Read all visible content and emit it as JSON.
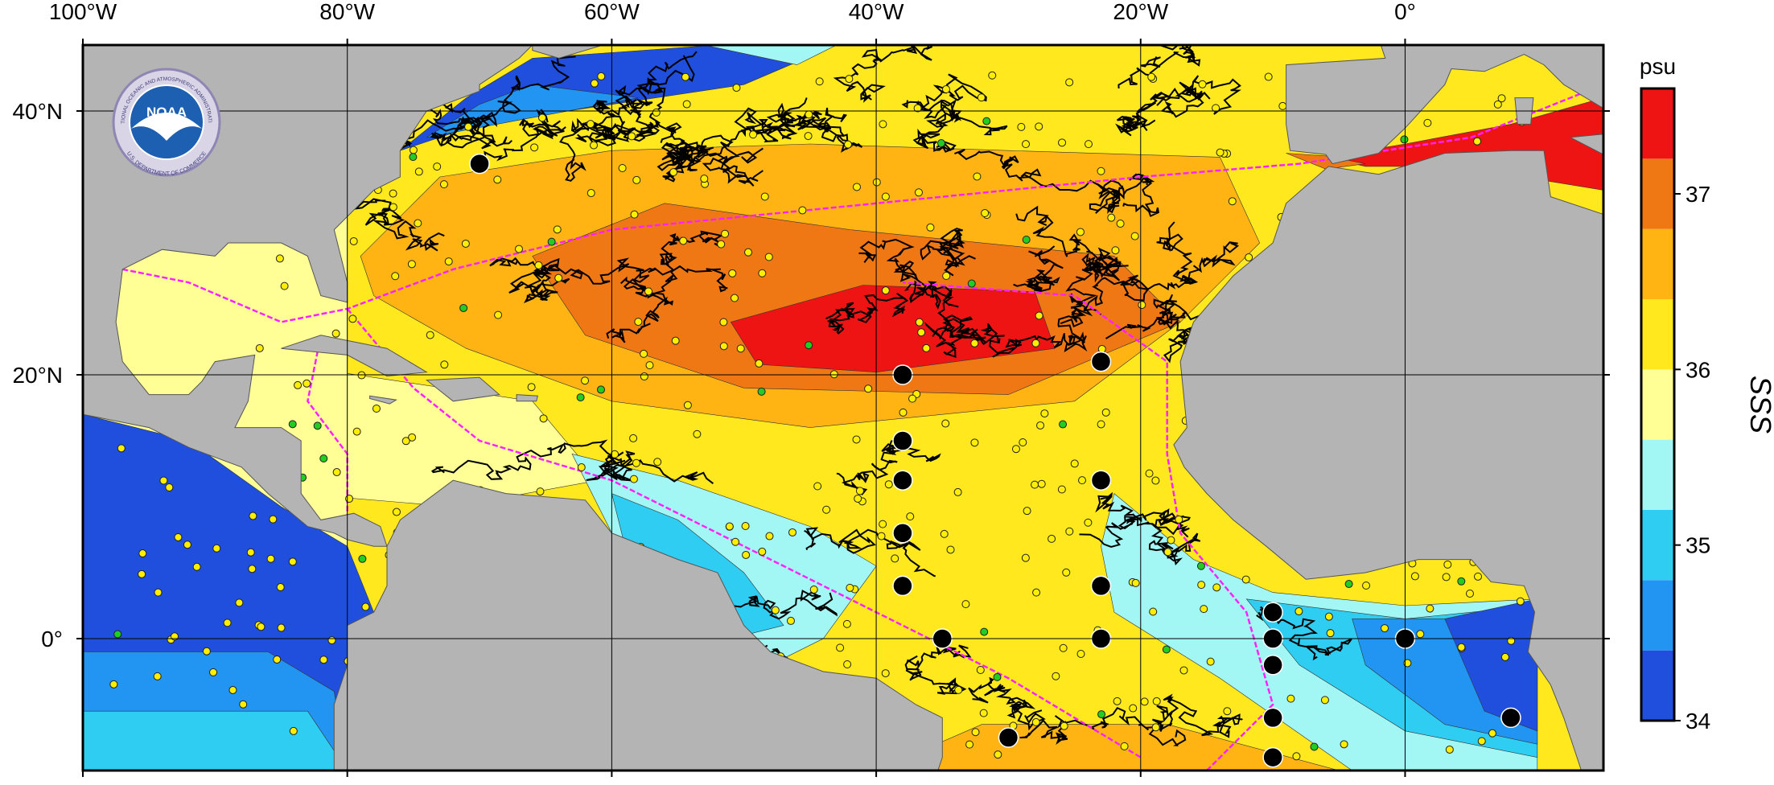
{
  "map": {
    "xlim": [
      -100,
      15
    ],
    "ylim": [
      -10,
      45
    ],
    "xticks": [
      {
        "value": -100,
        "label": "100°W"
      },
      {
        "value": -80,
        "label": "80°W"
      },
      {
        "value": -60,
        "label": "60°W"
      },
      {
        "value": -40,
        "label": "40°W"
      },
      {
        "value": -20,
        "label": "20°W"
      },
      {
        "value": 0,
        "label": "0°"
      }
    ],
    "yticks": [
      {
        "value": 0,
        "label": "0°"
      },
      {
        "value": 20,
        "label": "20°N"
      },
      {
        "value": 40,
        "label": "40°N"
      }
    ],
    "grid": true,
    "colorbar": {
      "label": "SSS",
      "unit": "psu",
      "range": [
        34,
        37.6
      ],
      "ticks": [
        34,
        35,
        36,
        37
      ],
      "colors": [
        "#1f4fdc",
        "#2294f2",
        "#30cdf2",
        "#a2f6f4",
        "#ffff96",
        "#ffe81e",
        "#ffb414",
        "#f07814",
        "#ee1414"
      ]
    },
    "logo": {
      "text": "NOAA",
      "top_text": "NATIONAL OCEANIC AND ATMOSPHERIC ADMINISTRATION",
      "bottom_text": "U.S. DEPARTMENT OF COMMERCE"
    }
  }
}
